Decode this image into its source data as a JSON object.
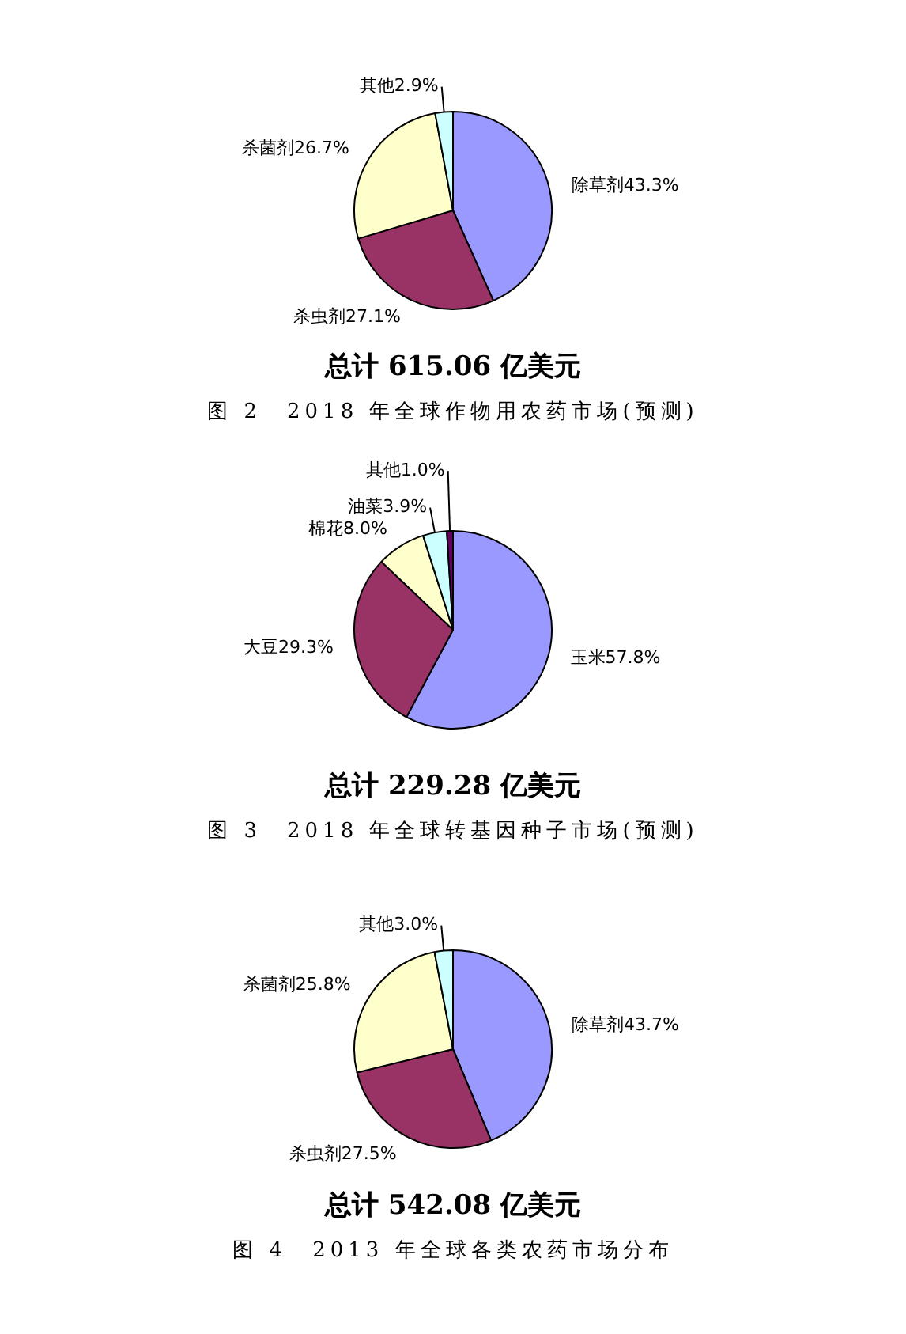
{
  "chart_data": [
    {
      "type": "pie",
      "subtitle": "总计 615.06 亿美元",
      "title": "图 2　2018 年全球作物用农药市场(预测)",
      "categories": [
        "除草剂",
        "杀虫剂",
        "杀菌剂",
        "其他"
      ],
      "values": [
        43.3,
        27.1,
        26.7,
        2.9
      ],
      "value_labels": [
        "43.3%",
        "27.1%",
        "26.7%",
        "2.9%"
      ],
      "colors": [
        "#9999ff",
        "#993366",
        "#ffffcc",
        "#ccffff"
      ],
      "legend": false
    },
    {
      "type": "pie",
      "subtitle": "总计 229.28 亿美元",
      "title": "图 3　2018 年全球转基因种子市场(预测)",
      "categories": [
        "玉米",
        "大豆",
        "棉花",
        "油菜",
        "其他"
      ],
      "values": [
        57.8,
        29.3,
        8.0,
        3.9,
        1.0
      ],
      "value_labels": [
        "57.8%",
        "29.3%",
        "8.0%",
        "3.9%",
        "1.0%"
      ],
      "colors": [
        "#9999ff",
        "#993366",
        "#ffffcc",
        "#ccffff",
        "#660066"
      ],
      "legend": false
    },
    {
      "type": "pie",
      "subtitle": "总计 542.08 亿美元",
      "title": "图 4　2013 年全球各类农药市场分布",
      "categories": [
        "除草剂",
        "杀虫剂",
        "杀菌剂",
        "其他"
      ],
      "values": [
        43.7,
        27.5,
        25.8,
        3.0
      ],
      "value_labels": [
        "43.7%",
        "27.5%",
        "25.8%",
        "3.0%"
      ],
      "colors": [
        "#9999ff",
        "#993366",
        "#ffffcc",
        "#ccffff"
      ],
      "legend": false
    }
  ]
}
